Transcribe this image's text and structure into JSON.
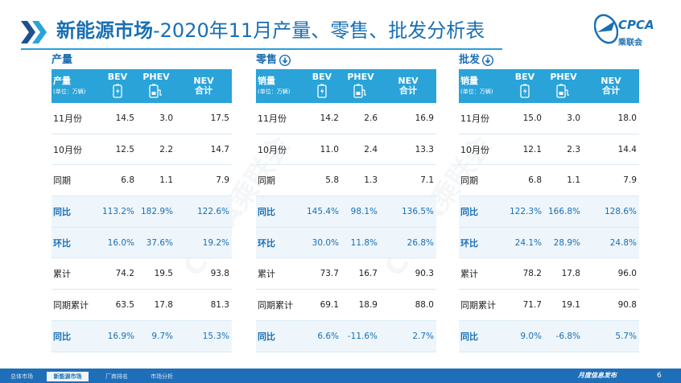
{
  "header": {
    "title_bold": "新能源市场",
    "title_rest": "-2020年11月产量、零售、批发分析表",
    "logo_text": "CPCA",
    "logo_sub": "乘联会",
    "watermark": "CPCA乘联会"
  },
  "columns": {
    "unit": "(单位：万辆)",
    "bev": "BEV",
    "phev": "PHEV",
    "nev_1": "NEV",
    "nev_2": "合计"
  },
  "sections": [
    {
      "title": "产量",
      "corner": "产量",
      "rows": [
        {
          "label": "11月份",
          "bev": "14.5",
          "phev": "3.0",
          "nev": "17.5",
          "hl": false
        },
        {
          "label": "10月份",
          "bev": "12.5",
          "phev": "2.2",
          "nev": "14.7",
          "hl": false
        },
        {
          "label": "同期",
          "bev": "6.8",
          "phev": "1.1",
          "nev": "7.9",
          "hl": false
        },
        {
          "label": "同比",
          "bev": "113.2%",
          "phev": "182.9%",
          "nev": "122.6%",
          "hl": true
        },
        {
          "label": "环比",
          "bev": "16.0%",
          "phev": "37.6%",
          "nev": "19.2%",
          "hl": true
        },
        {
          "label": "累计",
          "bev": "74.2",
          "phev": "19.5",
          "nev": "93.8",
          "hl": false
        },
        {
          "label": "同期累计",
          "bev": "63.5",
          "phev": "17.8",
          "nev": "81.3",
          "hl": false
        },
        {
          "label": "同比",
          "bev": "16.9%",
          "phev": "9.7%",
          "nev": "15.3%",
          "hl": true
        }
      ]
    },
    {
      "title": "零售",
      "corner": "销量",
      "rows": [
        {
          "label": "11月份",
          "bev": "14.2",
          "phev": "2.6",
          "nev": "16.9",
          "hl": false
        },
        {
          "label": "10月份",
          "bev": "11.0",
          "phev": "2.4",
          "nev": "13.3",
          "hl": false
        },
        {
          "label": "同期",
          "bev": "5.8",
          "phev": "1.3",
          "nev": "7.1",
          "hl": false
        },
        {
          "label": "同比",
          "bev": "145.4%",
          "phev": "98.1%",
          "nev": "136.5%",
          "hl": true
        },
        {
          "label": "环比",
          "bev": "30.0%",
          "phev": "11.8%",
          "nev": "26.8%",
          "hl": true
        },
        {
          "label": "累计",
          "bev": "73.7",
          "phev": "16.7",
          "nev": "90.3",
          "hl": false
        },
        {
          "label": "同期累计",
          "bev": "69.1",
          "phev": "18.9",
          "nev": "88.0",
          "hl": false
        },
        {
          "label": "同比",
          "bev": "6.6%",
          "phev": "-11.6%",
          "nev": "2.7%",
          "hl": true
        }
      ]
    },
    {
      "title": "批发",
      "corner": "销量",
      "rows": [
        {
          "label": "11月份",
          "bev": "15.0",
          "phev": "3.0",
          "nev": "18.0",
          "hl": false
        },
        {
          "label": "10月份",
          "bev": "12.1",
          "phev": "2.3",
          "nev": "14.4",
          "hl": false
        },
        {
          "label": "同期",
          "bev": "6.8",
          "phev": "1.1",
          "nev": "7.9",
          "hl": false
        },
        {
          "label": "同比",
          "bev": "122.3%",
          "phev": "166.8%",
          "nev": "128.6%",
          "hl": true
        },
        {
          "label": "环比",
          "bev": "24.1%",
          "phev": "28.9%",
          "nev": "24.8%",
          "hl": true
        },
        {
          "label": "累计",
          "bev": "78.2",
          "phev": "17.8",
          "nev": "96.0",
          "hl": false
        },
        {
          "label": "同期累计",
          "bev": "71.7",
          "phev": "19.1",
          "nev": "90.8",
          "hl": false
        },
        {
          "label": "同比",
          "bev": "9.0%",
          "phev": "-6.8%",
          "nev": "5.7%",
          "hl": true
        }
      ]
    }
  ],
  "footer": {
    "tabs": [
      {
        "label": "总体市场",
        "active": false
      },
      {
        "label": "新能源市场",
        "active": true
      },
      {
        "label": "厂商排名",
        "active": false
      },
      {
        "label": "市场分析",
        "active": false
      }
    ],
    "publish": "月度信息发布",
    "page_number": "6"
  },
  "colors": {
    "accent": "#1a6fb3",
    "header_bg": "#2aa3d9",
    "highlight_row": "#eef6fc",
    "footer_bg": "#1f6eb8"
  }
}
